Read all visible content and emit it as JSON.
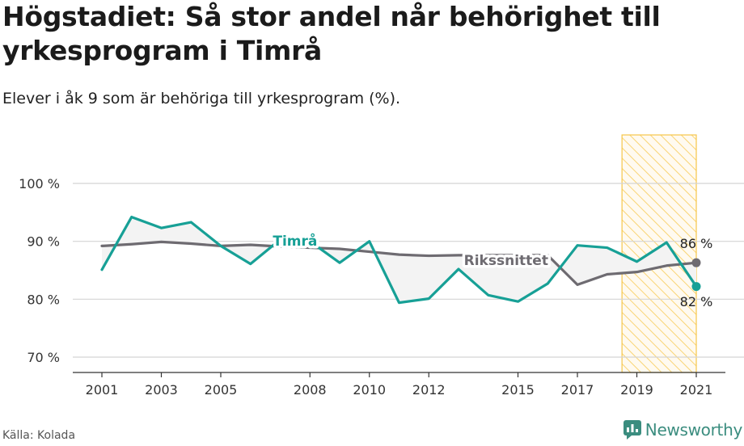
{
  "header": {
    "title_line1": "Högstadiet: Så stor andel når behörighet till",
    "title_line2": "yrkesprogram i Timrå",
    "subtitle": "Elever i åk 9 som är behöriga till yrkesprogram (%)."
  },
  "footer": {
    "source": "Källa: Kolada",
    "brand": "Newsworthy"
  },
  "colors": {
    "timra": "#17a096",
    "riks": "#6e6b71",
    "highlight": "#f6c64a",
    "grid": "#d4d4d4",
    "fill": "#f3f3f3",
    "brand": "#3b8d7f"
  },
  "chart_data": {
    "type": "line",
    "title": "Högstadiet: Så stor andel når behörighet till yrkesprogram i Timrå",
    "subtitle": "Elever i åk 9 som är behöriga till yrkesprogram (%).",
    "xlim": [
      2001,
      2021
    ],
    "ylim": [
      70,
      100
    ],
    "x_ticks": [
      2001,
      2003,
      2005,
      2008,
      2010,
      2012,
      2015,
      2017,
      2019,
      2021
    ],
    "y_ticks": [
      70,
      80,
      90,
      100
    ],
    "y_tick_labels": [
      "70 %",
      "80 %",
      "90 %",
      "100 %"
    ],
    "grid": true,
    "highlight_range": [
      2018.5,
      2021
    ],
    "series": [
      {
        "name": "Timrå",
        "color": "#17a096",
        "x": [
          2001,
          2002,
          2003,
          2004,
          2005,
          2006,
          2007,
          2008,
          2009,
          2010,
          2011,
          2012,
          2013,
          2014,
          2015,
          2016,
          2017,
          2018,
          2019,
          2020,
          2021
        ],
        "values": [
          85.1,
          94.2,
          92.3,
          93.3,
          89.2,
          86.1,
          90.3,
          90.0,
          86.3,
          90.0,
          79.4,
          80.1,
          85.2,
          80.7,
          79.6,
          82.7,
          89.3,
          88.9,
          86.5,
          89.8,
          82.2
        ],
        "end_label": "82 %"
      },
      {
        "name": "Rikssnittet",
        "color": "#6e6b71",
        "x": [
          2001,
          2002,
          2003,
          2004,
          2005,
          2006,
          2007,
          2008,
          2009,
          2010,
          2011,
          2012,
          2013,
          2014,
          2015,
          2016,
          2017,
          2018,
          2019,
          2020,
          2021
        ],
        "values": [
          89.2,
          89.5,
          89.9,
          89.6,
          89.2,
          89.4,
          89.1,
          88.9,
          88.7,
          88.2,
          87.7,
          87.5,
          87.6,
          87.6,
          87.6,
          87.6,
          82.5,
          84.3,
          84.7,
          85.8,
          86.3
        ],
        "end_label": "86 %"
      }
    ]
  }
}
